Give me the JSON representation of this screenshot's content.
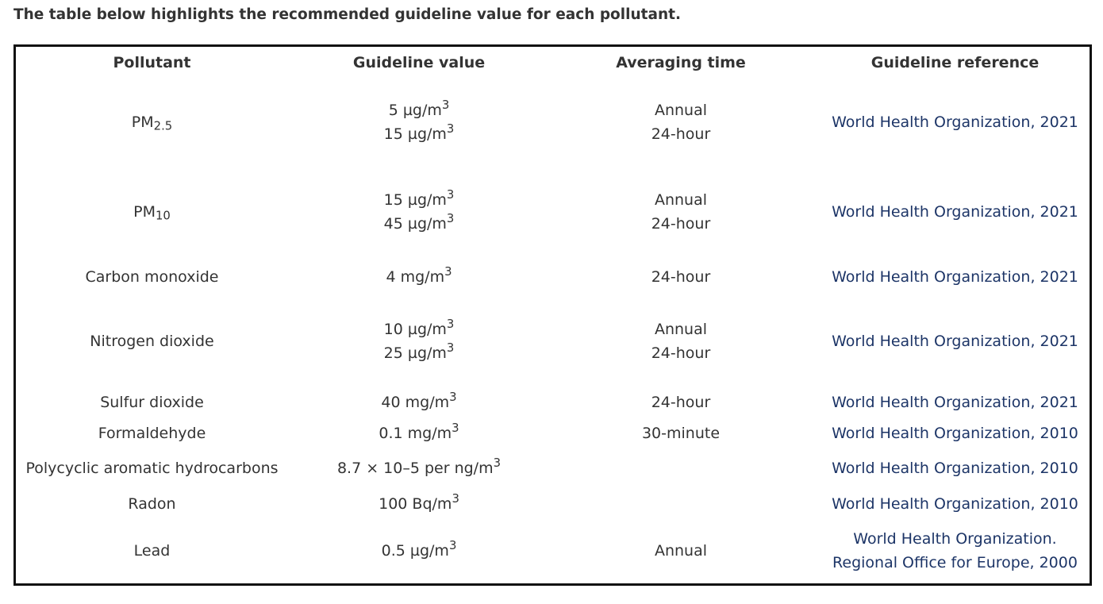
{
  "intro": "The table below highlights the recommended guideline value for each pollutant.",
  "headers": {
    "pollutant": "Pollutant",
    "guideline_value": "Guideline value",
    "averaging_time": "Averaging time",
    "reference": "Guideline reference"
  },
  "rows": [
    {
      "pollutant": "PM",
      "pollutant_sub": "2.5",
      "values": [
        {
          "main": "5 µg/m",
          "sup": "3"
        },
        {
          "main": "15 µg/m",
          "sup": "3"
        }
      ],
      "times": [
        "Annual",
        "24-hour"
      ],
      "reference": [
        "World Health Organization, 2021"
      ]
    },
    {
      "pollutant": "PM",
      "pollutant_sub": "10",
      "values": [
        {
          "main": "15 µg/m",
          "sup": "3"
        },
        {
          "main": "45 µg/m",
          "sup": "3"
        }
      ],
      "times": [
        "Annual",
        "24-hour"
      ],
      "reference": [
        "World Health Organization, 2021"
      ]
    },
    {
      "pollutant": "Carbon monoxide",
      "pollutant_sub": "",
      "values": [
        {
          "main": "4 mg/m",
          "sup": "3"
        }
      ],
      "times": [
        "24-hour"
      ],
      "reference": [
        "World Health Organization, 2021"
      ]
    },
    {
      "pollutant": "Nitrogen dioxide",
      "pollutant_sub": "",
      "values": [
        {
          "main": "10 µg/m",
          "sup": "3"
        },
        {
          "main": "25 µg/m",
          "sup": "3"
        }
      ],
      "times": [
        "Annual",
        "24-hour"
      ],
      "reference": [
        "World Health Organization, 2021"
      ]
    },
    {
      "pollutant": "Sulfur dioxide",
      "pollutant_sub": "",
      "values": [
        {
          "main": "40 mg/m",
          "sup": "3"
        }
      ],
      "times": [
        "24-hour"
      ],
      "reference": [
        "World Health Organization, 2021"
      ]
    },
    {
      "pollutant": "Formaldehyde",
      "pollutant_sub": "",
      "values": [
        {
          "main": "0.1 mg/m",
          "sup": "3"
        }
      ],
      "times": [
        "30-minute"
      ],
      "reference": [
        "World Health Organization, 2010"
      ]
    },
    {
      "pollutant": "Polycyclic aromatic hydrocarbons",
      "pollutant_sub": "",
      "values": [
        {
          "main": "8.7 × 10–5 per ng/m",
          "sup": "3"
        }
      ],
      "times": [],
      "reference": [
        "World Health Organization, 2010"
      ]
    },
    {
      "pollutant": "Radon",
      "pollutant_sub": "",
      "values": [
        {
          "main": "100 Bq/m",
          "sup": "3"
        }
      ],
      "times": [],
      "reference": [
        "World Health Organization, 2010"
      ]
    },
    {
      "pollutant": "Lead",
      "pollutant_sub": "",
      "values": [
        {
          "main": "0.5 µg/m",
          "sup": "3"
        }
      ],
      "times": [
        "Annual"
      ],
      "reference": [
        "World Health Organization.",
        "Regional Office for Europe, 2000"
      ]
    }
  ]
}
